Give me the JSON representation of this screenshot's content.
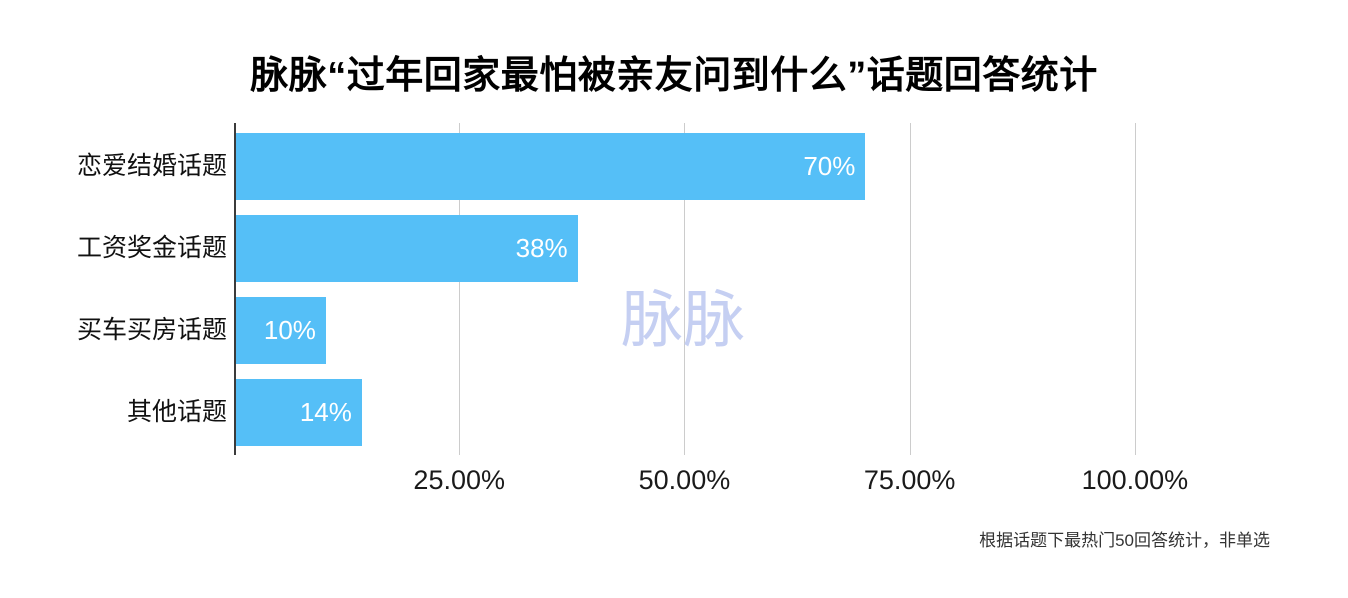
{
  "chart_data": {
    "type": "bar",
    "orientation": "horizontal",
    "title": "脉脉“过年回家最怕被亲友问到什么”话题回答统计",
    "categories": [
      "恋爱结婚话题",
      "工资奖金话题",
      "买车买房话题",
      "其他话题"
    ],
    "values": [
      70,
      38,
      10,
      14
    ],
    "value_labels": [
      "70%",
      "38%",
      "10%",
      "14%"
    ],
    "x_tick_values": [
      25,
      50,
      75,
      100
    ],
    "x_tick_labels": [
      "25.00%",
      "50.00%",
      "75.00%",
      "100.00%"
    ],
    "xlim": [
      0,
      113
    ],
    "grid": "vertical",
    "legend": "none",
    "bar_color": "#55bff7",
    "grid_color": "#cccccc",
    "axis_color": "#3b3b3b",
    "watermark": "脉脉",
    "watermark_color": "#c5cff2",
    "footnote": "根据话题下最热门50回答统计，非单选"
  }
}
